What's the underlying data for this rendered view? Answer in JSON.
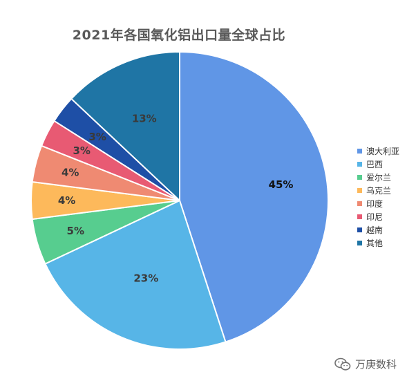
{
  "chart_data": {
    "type": "pie",
    "title": "2021年各国氧化铝出口量全球占比",
    "slices": [
      {
        "name": "澳大利亚",
        "value": 45,
        "label": "45%",
        "color": "#6096e6"
      },
      {
        "name": "巴西",
        "value": 23,
        "label": "23%",
        "color": "#57b5e7"
      },
      {
        "name": "爱尔兰",
        "value": 5,
        "label": "5%",
        "color": "#57cd8f"
      },
      {
        "name": "乌克兰",
        "value": 4,
        "label": "4%",
        "color": "#fdb95b"
      },
      {
        "name": "印度",
        "value": 4,
        "label": "4%",
        "color": "#ef8a72"
      },
      {
        "name": "印尼",
        "value": 3,
        "label": "3%",
        "color": "#e85a73"
      },
      {
        "name": "越南",
        "value": 3,
        "label": "3%",
        "color": "#1e4fa6"
      },
      {
        "name": "其他",
        "value": 13,
        "label": "13%",
        "color": "#1f75a5"
      }
    ],
    "start_angle": "12 o'clock",
    "direction": "clockwise",
    "legend_position": "right",
    "label_colors": {
      "dark_text": "#3a3a3a"
    }
  },
  "watermark": {
    "text": "万庚数科",
    "icon": "wechat-icon"
  }
}
